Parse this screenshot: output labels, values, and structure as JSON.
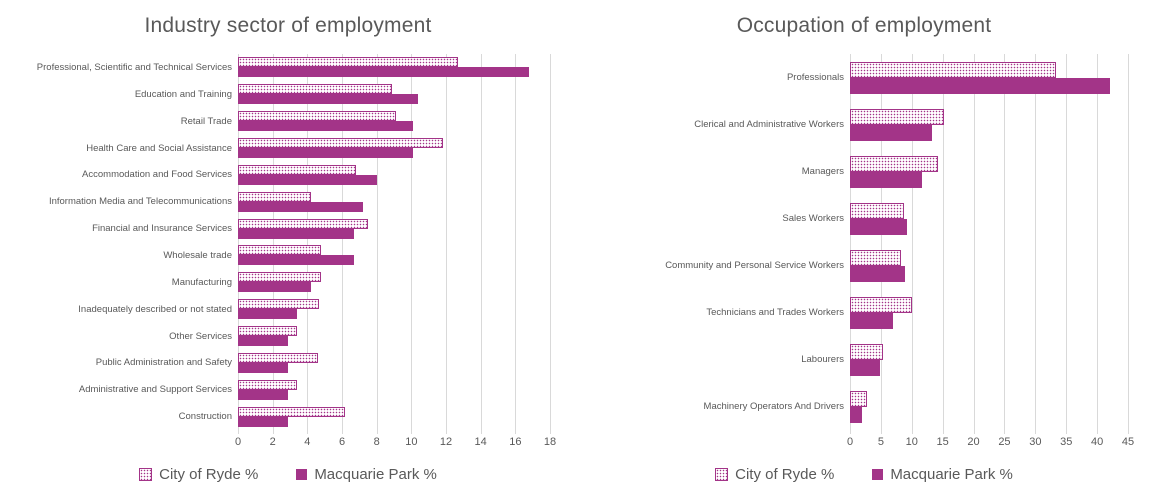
{
  "colors": {
    "accent": "#a33488",
    "pattern_fill": "#ffffff",
    "title_text": "#595959",
    "axis_text": "#595959",
    "gridline": "#d9d9d9"
  },
  "legend": {
    "items": [
      {
        "label": "City of Ryde %",
        "style": "dotted"
      },
      {
        "label": "Macquarie Park %",
        "style": "solid"
      }
    ]
  },
  "chart_data": [
    {
      "type": "bar",
      "orientation": "horizontal",
      "title": "Industry sector of employment",
      "categories": [
        "Professional, Scientific and Technical Services",
        "Education and Training",
        "Retail Trade",
        "Health Care and Social Assistance",
        "Accommodation and Food Services",
        "Information Media and Telecommunications",
        "Financial and Insurance Services",
        "Wholesale trade",
        "Manufacturing",
        "Inadequately described or not stated",
        "Other Services",
        "Public Administration and Safety",
        "Administrative and Support Services",
        "Construction"
      ],
      "series": [
        {
          "name": "City of Ryde %",
          "values": [
            12.7,
            8.9,
            9.1,
            11.8,
            6.8,
            4.2,
            7.5,
            4.8,
            4.8,
            4.7,
            3.4,
            4.6,
            3.4,
            6.2
          ]
        },
        {
          "name": "Macquarie Park %",
          "values": [
            16.8,
            10.4,
            10.1,
            10.1,
            8.0,
            7.2,
            6.7,
            6.7,
            4.2,
            3.4,
            2.9,
            2.9,
            2.9,
            2.9
          ]
        }
      ],
      "xlabel": "",
      "ylabel": "",
      "xlim": [
        0,
        18
      ],
      "xticks": [
        0,
        2,
        4,
        6,
        8,
        10,
        12,
        14,
        16,
        18
      ],
      "grid": true,
      "legend_position": "bottom"
    },
    {
      "type": "bar",
      "orientation": "horizontal",
      "title": "Occupation of employment",
      "categories": [
        "Professionals",
        "Clerical and Administrative Workers",
        "Managers",
        "Sales Workers",
        "Community and Personal Service Workers",
        "Technicians and Trades Workers",
        "Labourers",
        "Machinery Operators And Drivers"
      ],
      "series": [
        {
          "name": "City of Ryde %",
          "values": [
            33.3,
            15.2,
            14.3,
            8.8,
            8.3,
            10.0,
            5.4,
            2.8
          ]
        },
        {
          "name": "Macquarie Park %",
          "values": [
            42.1,
            13.3,
            11.7,
            9.3,
            8.9,
            7.0,
            4.9,
            1.9
          ]
        }
      ],
      "xlabel": "",
      "ylabel": "",
      "xlim": [
        0,
        45
      ],
      "xticks": [
        0,
        5,
        10,
        15,
        20,
        25,
        30,
        35,
        40,
        45
      ],
      "grid": true,
      "legend_position": "bottom"
    }
  ]
}
